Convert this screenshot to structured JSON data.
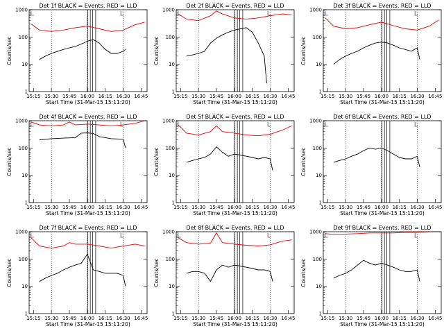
{
  "figure": {
    "title_template": "{det} BLACK = Events, RED = LLD",
    "colors": {
      "events": "#000000",
      "lld": "#e00000"
    }
  },
  "chart_data": [
    {
      "type": "line",
      "title": "Det 1f BLACK = Events, RED = LLD",
      "xlabel": "Start Time (31-Mar-15 15:11:20)",
      "ylabel": "Counts/sec",
      "yscale": "log",
      "ylim": [
        1,
        1000
      ],
      "x_tick_labels": [
        "15:15",
        "15:30",
        "15:45",
        "16:00",
        "16:15",
        "16:30",
        "16:45"
      ],
      "y_tick_labels": [
        "1",
        "10",
        "100",
        "1000"
      ],
      "series": [
        {
          "name": "Events",
          "color": "#000000",
          "x": [
            "15:20",
            "15:25",
            "15:30",
            "15:35",
            "15:40",
            "15:45",
            "15:50",
            "15:55",
            "16:00",
            "16:05",
            "16:10",
            "16:15",
            "16:20",
            "16:25",
            "16:30",
            "16:32"
          ],
          "y": [
            15,
            20,
            25,
            30,
            35,
            40,
            45,
            55,
            70,
            80,
            60,
            35,
            25,
            25,
            30,
            35
          ]
        },
        {
          "name": "LLD",
          "color": "#e00000",
          "x": [
            "15:13",
            "15:20",
            "15:30",
            "15:40",
            "15:50",
            "16:00",
            "16:10",
            "16:20",
            "16:30",
            "16:40",
            "16:48"
          ],
          "y": [
            300,
            180,
            160,
            180,
            220,
            250,
            200,
            160,
            180,
            280,
            350
          ]
        }
      ]
    },
    {
      "type": "line",
      "title": "Det 2f BLACK = Events, RED = LLD",
      "xlabel": "Start Time (31-Mar-15 15:11:20)",
      "ylabel": "Counts/sec",
      "yscale": "log",
      "ylim": [
        1,
        1000
      ],
      "x_tick_labels": [
        "15:15",
        "15:30",
        "15:45",
        "16:00",
        "16:15",
        "16:30",
        "16:45"
      ],
      "y_tick_labels": [
        "1",
        "10",
        "100",
        "1000"
      ],
      "series": [
        {
          "name": "Events",
          "color": "#000000",
          "x": [
            "15:20",
            "15:25",
            "15:30",
            "15:35",
            "15:40",
            "15:45",
            "15:50",
            "15:55",
            "16:00",
            "16:05",
            "16:10",
            "16:15",
            "16:20",
            "16:25",
            "16:27"
          ],
          "y": [
            20,
            22,
            25,
            30,
            60,
            90,
            120,
            150,
            180,
            200,
            220,
            150,
            60,
            20,
            2
          ]
        },
        {
          "name": "LLD",
          "color": "#e00000",
          "x": [
            "15:13",
            "15:20",
            "15:30",
            "15:40",
            "15:45",
            "15:50",
            "16:00",
            "16:10",
            "16:20",
            "16:30",
            "16:40",
            "16:48"
          ],
          "y": [
            700,
            450,
            400,
            600,
            900,
            700,
            500,
            450,
            500,
            600,
            700,
            650
          ]
        }
      ]
    },
    {
      "type": "line",
      "title": "Det 3f BLACK = Events, RED = LLD",
      "xlabel": "Start Time (31-Mar-15 15:11:20)",
      "ylabel": "Counts/sec",
      "yscale": "log",
      "ylim": [
        1,
        1000
      ],
      "x_tick_labels": [
        "15:15",
        "15:30",
        "15:45",
        "16:00",
        "16:15",
        "16:30",
        "16:45"
      ],
      "y_tick_labels": [
        "1",
        "10",
        "100",
        "1000"
      ],
      "series": [
        {
          "name": "Events",
          "color": "#000000",
          "x": [
            "15:20",
            "15:25",
            "15:30",
            "15:35",
            "15:40",
            "15:45",
            "15:50",
            "15:55",
            "16:00",
            "16:05",
            "16:10",
            "16:15",
            "16:20",
            "16:25",
            "16:30",
            "16:32"
          ],
          "y": [
            10,
            15,
            20,
            25,
            30,
            40,
            50,
            60,
            65,
            60,
            50,
            40,
            35,
            30,
            40,
            15
          ]
        },
        {
          "name": "LLD",
          "color": "#e00000",
          "x": [
            "15:13",
            "15:20",
            "15:30",
            "15:40",
            "15:50",
            "16:00",
            "16:10",
            "16:20",
            "16:30",
            "16:40",
            "16:48"
          ],
          "y": [
            500,
            250,
            200,
            220,
            280,
            350,
            260,
            200,
            180,
            250,
            420
          ]
        }
      ]
    },
    {
      "type": "line",
      "title": "Det 4f BLACK = Events, RED = LLD",
      "xlabel": "Start Time (31-Mar-15 15:11:20)",
      "ylabel": "Counts/sec",
      "yscale": "log",
      "ylim": [
        1,
        1000
      ],
      "x_tick_labels": [
        "15:15",
        "15:30",
        "15:45",
        "16:00",
        "16:15",
        "16:30",
        "16:45"
      ],
      "y_tick_labels": [
        "1",
        "10",
        "100",
        "1000"
      ],
      "series": [
        {
          "name": "Events",
          "color": "#000000",
          "x": [
            "15:20",
            "15:30",
            "15:40",
            "15:50",
            "15:55",
            "16:00",
            "16:05",
            "16:10",
            "16:20",
            "16:30",
            "16:32"
          ],
          "y": [
            200,
            220,
            230,
            240,
            350,
            360,
            340,
            260,
            220,
            210,
            100
          ]
        },
        {
          "name": "LLD",
          "color": "#e00000",
          "x": [
            "15:13",
            "15:20",
            "15:30",
            "15:40",
            "15:45",
            "15:50",
            "16:00",
            "16:10",
            "16:20",
            "16:30",
            "16:40",
            "16:48"
          ],
          "y": [
            900,
            700,
            650,
            700,
            900,
            700,
            750,
            700,
            650,
            700,
            800,
            1000
          ]
        }
      ]
    },
    {
      "type": "line",
      "title": "Det 5f BLACK = Events, RED = LLD",
      "xlabel": "Start Time (31-Mar-15 15:11:20)",
      "ylabel": "Counts/sec",
      "yscale": "log",
      "ylim": [
        1,
        1000
      ],
      "x_tick_labels": [
        "15:15",
        "15:30",
        "15:45",
        "16:00",
        "16:15",
        "16:30",
        "16:45"
      ],
      "y_tick_labels": [
        "1",
        "10",
        "100",
        "1000"
      ],
      "series": [
        {
          "name": "Events",
          "color": "#000000",
          "x": [
            "15:20",
            "15:25",
            "15:30",
            "15:35",
            "15:40",
            "15:45",
            "15:50",
            "15:55",
            "16:00",
            "16:05",
            "16:10",
            "16:15",
            "16:20",
            "16:25",
            "16:30",
            "16:32"
          ],
          "y": [
            30,
            35,
            40,
            45,
            60,
            110,
            70,
            50,
            60,
            55,
            50,
            45,
            40,
            45,
            40,
            15
          ]
        },
        {
          "name": "LLD",
          "color": "#e00000",
          "x": [
            "15:13",
            "15:20",
            "15:30",
            "15:40",
            "15:45",
            "15:50",
            "16:00",
            "16:10",
            "16:20",
            "16:30",
            "16:40",
            "16:48"
          ],
          "y": [
            700,
            350,
            300,
            400,
            650,
            400,
            350,
            300,
            280,
            320,
            450,
            650
          ]
        }
      ]
    },
    {
      "type": "line",
      "title": "Det 6f BLACK = Events, RED = LLD",
      "xlabel": "Start Time (31-Mar-15 15:11:20)",
      "ylabel": "Counts/sec",
      "yscale": "log",
      "ylim": [
        1,
        1000
      ],
      "x_tick_labels": [
        "15:15",
        "15:30",
        "15:45",
        "16:00",
        "16:15",
        "16:30",
        "16:45"
      ],
      "y_tick_labels": [
        "1",
        "10",
        "100",
        "1000"
      ],
      "series": [
        {
          "name": "Events",
          "color": "#000000",
          "x": [
            "15:20",
            "15:25",
            "15:30",
            "15:35",
            "15:40",
            "15:45",
            "15:50",
            "15:55",
            "16:00",
            "16:05",
            "16:10",
            "16:15",
            "16:20",
            "16:25",
            "16:30",
            "16:32"
          ],
          "y": [
            30,
            35,
            40,
            50,
            60,
            80,
            100,
            90,
            100,
            80,
            60,
            45,
            40,
            40,
            50,
            20
          ]
        }
      ]
    },
    {
      "type": "line",
      "title": "Det 7f BLACK = Events, RED = LLD",
      "xlabel": "Start Time (31-Mar-15 15:11:20)",
      "ylabel": "Counts/sec",
      "yscale": "log",
      "ylim": [
        1,
        1000
      ],
      "x_tick_labels": [
        "15:15",
        "15:30",
        "15:45",
        "16:00",
        "16:15",
        "16:30",
        "16:45"
      ],
      "y_tick_labels": [
        "1",
        "10",
        "100",
        "1000"
      ],
      "series": [
        {
          "name": "Events",
          "color": "#000000",
          "x": [
            "15:20",
            "15:25",
            "15:30",
            "15:35",
            "15:40",
            "15:45",
            "15:50",
            "15:55",
            "16:00",
            "16:05",
            "16:10",
            "16:15",
            "16:20",
            "16:25",
            "16:30",
            "16:32"
          ],
          "y": [
            15,
            20,
            25,
            30,
            40,
            50,
            60,
            70,
            150,
            40,
            35,
            30,
            30,
            30,
            25,
            10
          ]
        },
        {
          "name": "LLD",
          "color": "#e00000",
          "x": [
            "15:13",
            "15:20",
            "15:30",
            "15:40",
            "15:45",
            "15:50",
            "16:00",
            "16:10",
            "16:20",
            "16:30",
            "16:40",
            "16:48"
          ],
          "y": [
            600,
            300,
            250,
            300,
            400,
            350,
            350,
            300,
            250,
            300,
            350,
            300
          ]
        }
      ]
    },
    {
      "type": "line",
      "title": "Det 8f BLACK = Events, RED = LLD",
      "xlabel": "Start Time (31-Mar-15 15:11:20)",
      "ylabel": "Counts/sec",
      "yscale": "log",
      "ylim": [
        1,
        1000
      ],
      "x_tick_labels": [
        "15:15",
        "15:30",
        "15:45",
        "16:00",
        "16:15",
        "16:30",
        "16:45"
      ],
      "y_tick_labels": [
        "1",
        "10",
        "100",
        "1000"
      ],
      "series": [
        {
          "name": "Events",
          "color": "#000000",
          "x": [
            "15:20",
            "15:25",
            "15:30",
            "15:35",
            "15:40",
            "15:45",
            "15:50",
            "15:55",
            "16:00",
            "16:05",
            "16:10",
            "16:15",
            "16:20",
            "16:25",
            "16:30",
            "16:32"
          ],
          "y": [
            30,
            35,
            35,
            30,
            15,
            40,
            60,
            50,
            60,
            55,
            50,
            45,
            40,
            40,
            35,
            15
          ]
        },
        {
          "name": "LLD",
          "color": "#e00000",
          "x": [
            "15:13",
            "15:20",
            "15:30",
            "15:40",
            "15:45",
            "15:50",
            "16:00",
            "16:10",
            "16:20",
            "16:30",
            "16:40",
            "16:48"
          ],
          "y": [
            600,
            400,
            350,
            380,
            900,
            400,
            350,
            320,
            300,
            330,
            450,
            500
          ]
        }
      ]
    },
    {
      "type": "line",
      "title": "Det 9f BLACK = Events, RED = LLD",
      "xlabel": "Start Time (31-Mar-15 15:11:20)",
      "ylabel": "Counts/sec",
      "yscale": "log",
      "ylim": [
        1,
        1000
      ],
      "x_tick_labels": [
        "15:15",
        "15:30",
        "15:45",
        "16:00",
        "16:15",
        "16:30",
        "16:45"
      ],
      "y_tick_labels": [
        "1",
        "10",
        "100",
        "1000"
      ],
      "series": [
        {
          "name": "Events",
          "color": "#000000",
          "x": [
            "15:20",
            "15:25",
            "15:30",
            "15:35",
            "15:40",
            "15:45",
            "15:50",
            "15:55",
            "16:00",
            "16:05",
            "16:10",
            "16:15",
            "16:20",
            "16:25",
            "16:30",
            "16:32"
          ],
          "y": [
            20,
            25,
            30,
            40,
            60,
            90,
            70,
            60,
            70,
            60,
            50,
            40,
            35,
            35,
            40,
            15
          ]
        },
        {
          "name": "LLD",
          "color": "#e00000",
          "x": [
            "15:13",
            "15:20",
            "15:30",
            "15:40",
            "15:50",
            "16:00",
            "16:10",
            "16:20",
            "16:30",
            "16:40",
            "16:48"
          ],
          "y": [
            850,
            800,
            820,
            850,
            900,
            900,
            900,
            950,
            950,
            1000,
            1000
          ]
        }
      ]
    }
  ]
}
